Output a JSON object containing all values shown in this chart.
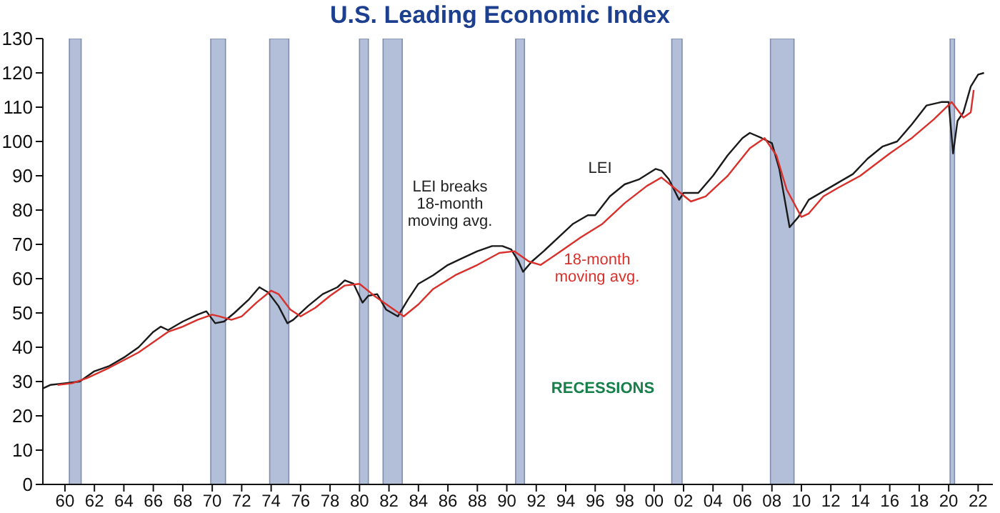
{
  "chart_data": {
    "type": "line",
    "title": "U.S. Leading Economic Index",
    "xlim": [
      1958.5,
      2023
    ],
    "xticks": [
      {
        "value": 1960,
        "label": "60"
      },
      {
        "value": 1962,
        "label": "62"
      },
      {
        "value": 1964,
        "label": "64"
      },
      {
        "value": 1966,
        "label": "66"
      },
      {
        "value": 1968,
        "label": "68"
      },
      {
        "value": 1970,
        "label": "70"
      },
      {
        "value": 1972,
        "label": "72"
      },
      {
        "value": 1974,
        "label": "74"
      },
      {
        "value": 1976,
        "label": "76"
      },
      {
        "value": 1978,
        "label": "78"
      },
      {
        "value": 1980,
        "label": "80"
      },
      {
        "value": 1982,
        "label": "82"
      },
      {
        "value": 1984,
        "label": "84"
      },
      {
        "value": 1986,
        "label": "86"
      },
      {
        "value": 1988,
        "label": "88"
      },
      {
        "value": 1990,
        "label": "90"
      },
      {
        "value": 1992,
        "label": "92"
      },
      {
        "value": 1994,
        "label": "94"
      },
      {
        "value": 1996,
        "label": "96"
      },
      {
        "value": 1998,
        "label": "98"
      },
      {
        "value": 2000,
        "label": "00"
      },
      {
        "value": 2002,
        "label": "02"
      },
      {
        "value": 2004,
        "label": "04"
      },
      {
        "value": 2006,
        "label": "06"
      },
      {
        "value": 2008,
        "label": "08"
      },
      {
        "value": 2010,
        "label": "10"
      },
      {
        "value": 2012,
        "label": "12"
      },
      {
        "value": 2014,
        "label": "14"
      },
      {
        "value": 2016,
        "label": "16"
      },
      {
        "value": 2018,
        "label": "18"
      },
      {
        "value": 2020,
        "label": "20"
      },
      {
        "value": 2022,
        "label": "22"
      }
    ],
    "ylim": [
      0,
      130
    ],
    "yticks": [
      0,
      10,
      20,
      30,
      40,
      50,
      60,
      70,
      80,
      90,
      100,
      110,
      120,
      130
    ],
    "grid": false,
    "marker": "none",
    "line_style": "solid",
    "series": [
      {
        "color": "#1a1a1a",
        "x": [
          1958.5,
          1959,
          1960,
          1961,
          1962,
          1963,
          1964,
          1965,
          1966,
          1966.5,
          1967,
          1968,
          1969,
          1969.6,
          1970.2,
          1970.8,
          1971.5,
          1972.5,
          1973.2,
          1973.8,
          1974.5,
          1975.1,
          1975.5,
          1976.5,
          1977.5,
          1978.5,
          1979,
          1979.6,
          1980.2,
          1980.6,
          1981.2,
          1981.8,
          1982.6,
          1983.3,
          1984,
          1985,
          1986,
          1987,
          1988,
          1989,
          1989.7,
          1990.3,
          1990.8,
          1991.1,
          1991.7,
          1992.5,
          1993.5,
          1994.5,
          1995.5,
          1996,
          1997,
          1998,
          1999,
          2000.1,
          2000.5,
          2001,
          2001.7,
          2002,
          2003,
          2004,
          2005,
          2006,
          2006.5,
          2007.3,
          2008,
          2008.5,
          2009.2,
          2009.8,
          2010.5,
          2011.5,
          2012.5,
          2013.5,
          2014.5,
          2015.5,
          2016.5,
          2017.5,
          2018.5,
          2019.5,
          2020,
          2020.3,
          2020.6,
          2021,
          2021.5,
          2022,
          2022.4
        ],
        "values": [
          28,
          29,
          29.5,
          30,
          33,
          34.5,
          37,
          40,
          44.5,
          46,
          45,
          47.5,
          49.5,
          50.5,
          47,
          47.5,
          50,
          54,
          57.5,
          56,
          52,
          47,
          48,
          52,
          55.5,
          57.5,
          59.5,
          58.5,
          53,
          55,
          55.5,
          51,
          49,
          54,
          58.5,
          61,
          64,
          66,
          68,
          69.5,
          69.5,
          68.5,
          65,
          62,
          65,
          68,
          72,
          76,
          78.5,
          78.5,
          84,
          87.5,
          89,
          92,
          91.5,
          89,
          83,
          85,
          85,
          90,
          96,
          101,
          102.5,
          101,
          99.5,
          92,
          75,
          78,
          83,
          85.5,
          88,
          90.5,
          95,
          98.5,
          100,
          105,
          110.5,
          111.5,
          111.5,
          96.5,
          106,
          108.5,
          116,
          119.5,
          120
        ]
      },
      {
        "color": "#d9302b",
        "x": [
          1959.5,
          1960.5,
          1961.5,
          1963,
          1965,
          1967,
          1968,
          1969,
          1970,
          1970.5,
          1971.3,
          1972,
          1973,
          1974,
          1974.5,
          1975.3,
          1976,
          1977,
          1978,
          1979,
          1980,
          1981,
          1982,
          1983,
          1984,
          1985,
          1986.5,
          1988,
          1989.5,
          1990.5,
          1991.5,
          1992.3,
          1993.5,
          1995,
          1996.5,
          1998,
          1999.5,
          2000.5,
          2001.5,
          2002.5,
          2003.5,
          2005,
          2006.5,
          2007.5,
          2008.3,
          2009,
          2010,
          2010.5,
          2011.5,
          2012.5,
          2014,
          2016,
          2017.5,
          2019,
          2020.2,
          2021,
          2021.5,
          2021.7
        ],
        "values": [
          29,
          29.5,
          31,
          34,
          38.5,
          44.5,
          46,
          48,
          49.5,
          49,
          48,
          49,
          53,
          56.5,
          55.5,
          51,
          49,
          51.5,
          55,
          58,
          58.5,
          55,
          52,
          49,
          52.5,
          57,
          61,
          64,
          67.5,
          68,
          65,
          64,
          67.5,
          72,
          76,
          82,
          87,
          89.5,
          86,
          82.5,
          84,
          90,
          98,
          101,
          96,
          86,
          78,
          79,
          84,
          86.5,
          90,
          96.5,
          101,
          106.5,
          111.5,
          107,
          108.5,
          115
        ]
      }
    ],
    "bands": [
      {
        "axis": "x",
        "from": 1960.3,
        "to": 1961.1,
        "color": "#b3bfd9"
      },
      {
        "axis": "x",
        "from": 1969.9,
        "to": 1970.9,
        "color": "#b3bfd9"
      },
      {
        "axis": "x",
        "from": 1973.9,
        "to": 1975.2,
        "color": "#b3bfd9"
      },
      {
        "axis": "x",
        "from": 1980,
        "to": 1980.6,
        "color": "#b3bfd9"
      },
      {
        "axis": "x",
        "from": 1981.6,
        "to": 1982.9,
        "color": "#b3bfd9"
      },
      {
        "axis": "x",
        "from": 1990.6,
        "to": 1991.2,
        "color": "#b3bfd9"
      },
      {
        "axis": "x",
        "from": 2001.2,
        "to": 2001.9,
        "color": "#b3bfd9"
      },
      {
        "axis": "x",
        "from": 2007.9,
        "to": 2009.5,
        "color": "#b3bfd9"
      },
      {
        "axis": "x",
        "from": 2020.1,
        "to": 2020.4,
        "color": "#b3bfd9"
      }
    ],
    "annotations": [
      "LEI breaks\n18-month\nmoving avg.",
      "LEI",
      "18-month\nmoving avg.",
      "RECESSIONS"
    ]
  }
}
